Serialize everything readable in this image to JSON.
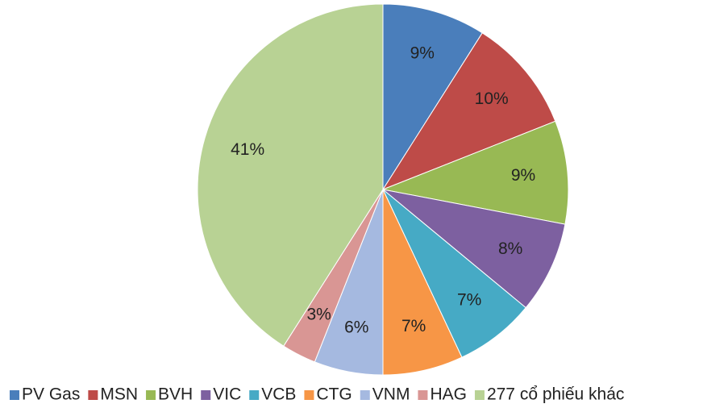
{
  "chart_data": {
    "type": "pie",
    "categories": [
      "PV Gas",
      "MSN",
      "BVH",
      "VIC",
      "VCB",
      "CTG",
      "VNM",
      "HAG",
      "277 cổ phiếu khác"
    ],
    "values": [
      9,
      10,
      9,
      8,
      7,
      7,
      6,
      3,
      41
    ],
    "value_labels": [
      "9%",
      "10%",
      "9%",
      "8%",
      "7%",
      "7%",
      "6%",
      "3%",
      "41%"
    ],
    "colors": [
      "#4a7ebb",
      "#be4b48",
      "#98b954",
      "#7d60a0",
      "#46aac5",
      "#f79646",
      "#a5b9e0",
      "#d99694",
      "#b8d294"
    ],
    "legend": "bottom"
  }
}
